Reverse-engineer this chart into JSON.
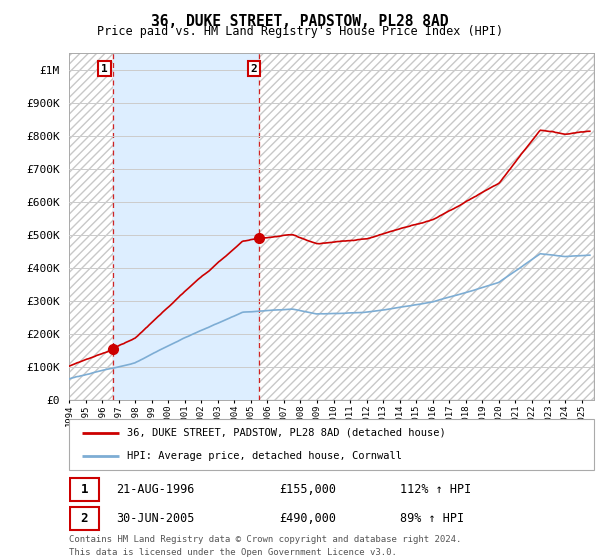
{
  "title": "36, DUKE STREET, PADSTOW, PL28 8AD",
  "subtitle": "Price paid vs. HM Land Registry's House Price Index (HPI)",
  "legend_line1": "36, DUKE STREET, PADSTOW, PL28 8AD (detached house)",
  "legend_line2": "HPI: Average price, detached house, Cornwall",
  "footer1": "Contains HM Land Registry data © Crown copyright and database right 2024.",
  "footer2": "This data is licensed under the Open Government Licence v3.0.",
  "sale1_label": "1",
  "sale1_date": "21-AUG-1996",
  "sale1_price": "£155,000",
  "sale1_hpi": "112% ↑ HPI",
  "sale2_label": "2",
  "sale2_date": "30-JUN-2005",
  "sale2_price": "£490,000",
  "sale2_hpi": "89% ↑ HPI",
  "hpi_color": "#7dadd4",
  "price_color": "#cc0000",
  "dashed_color": "#cc0000",
  "highlight_color": "#ddeeff",
  "ylim_min": 0,
  "ylim_max": 1050000,
  "yticks": [
    0,
    100000,
    200000,
    300000,
    400000,
    500000,
    600000,
    700000,
    800000,
    900000,
    1000000
  ],
  "ytick_labels": [
    "£0",
    "£100K",
    "£200K",
    "£300K",
    "£400K",
    "£500K",
    "£600K",
    "£700K",
    "£800K",
    "£900K",
    "£1M"
  ],
  "grid_color": "#cccccc",
  "hatch_color": "#e0e0e0",
  "sale1_x": 1996.6389,
  "sale2_x": 2005.4972,
  "xmin": 1994.0,
  "xmax": 2025.75
}
